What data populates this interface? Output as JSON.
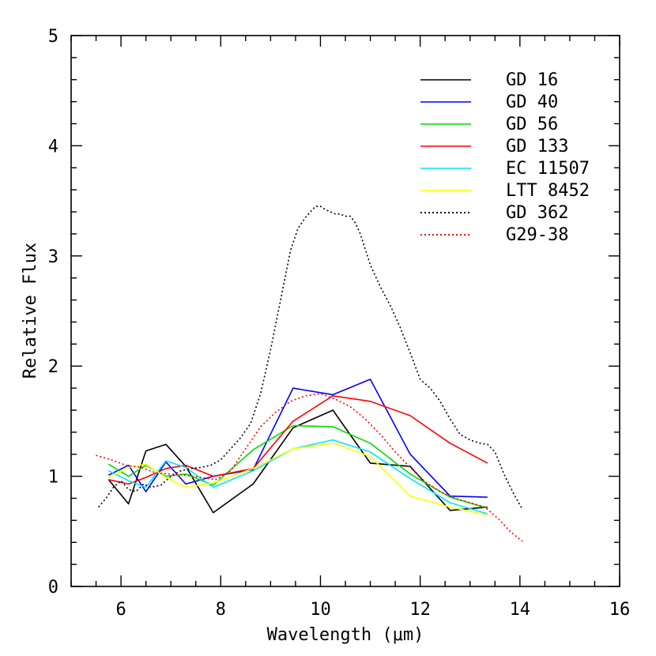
{
  "chart_data": {
    "type": "line",
    "title": "",
    "xlabel": "Wavelength (μm)",
    "ylabel": "Relative Flux",
    "xlim": [
      5,
      16
    ],
    "ylim": [
      0,
      5
    ],
    "xticks_major": [
      6,
      8,
      10,
      12,
      14,
      16
    ],
    "yticks_major": [
      0,
      1,
      2,
      3,
      4,
      5
    ],
    "grid": false,
    "legend_position": "top-right",
    "series": [
      {
        "name": "GD 16",
        "color": "#000000",
        "style": "solid",
        "x": [
          5.75,
          6.15,
          6.5,
          6.9,
          7.3,
          7.85,
          8.65,
          9.45,
          10.25,
          11.0,
          11.8,
          12.6,
          13.35
        ],
        "y": [
          0.97,
          0.75,
          1.23,
          1.29,
          1.09,
          0.67,
          0.93,
          1.44,
          1.6,
          1.12,
          1.09,
          0.69,
          0.72
        ]
      },
      {
        "name": "GD 40",
        "color": "#0000ff",
        "style": "solid",
        "x": [
          5.75,
          6.15,
          6.5,
          6.9,
          7.3,
          7.85,
          8.65,
          9.45,
          10.25,
          11.0,
          11.8,
          12.6,
          13.35
        ],
        "y": [
          1.01,
          1.1,
          0.86,
          1.13,
          0.93,
          1.0,
          1.06,
          1.8,
          1.74,
          1.88,
          1.2,
          0.82,
          0.81
        ]
      },
      {
        "name": "GD 56",
        "color": "#00dd00",
        "style": "solid",
        "x": [
          5.75,
          6.15,
          6.5,
          6.9,
          7.3,
          7.85,
          8.65,
          9.45,
          10.25,
          11.0,
          11.8,
          12.6,
          13.35
        ],
        "y": [
          1.11,
          1.0,
          1.1,
          1.0,
          1.02,
          0.92,
          1.24,
          1.46,
          1.45,
          1.3,
          1.02,
          0.81,
          0.71
        ]
      },
      {
        "name": "GD 133",
        "color": "#ff0000",
        "style": "solid",
        "x": [
          5.75,
          6.15,
          6.5,
          6.9,
          7.3,
          7.85,
          8.65,
          9.45,
          10.25,
          11.0,
          11.8,
          12.6,
          13.35
        ],
        "y": [
          0.97,
          0.93,
          0.99,
          1.07,
          1.1,
          1.0,
          1.07,
          1.5,
          1.73,
          1.68,
          1.55,
          1.3,
          1.12
        ]
      },
      {
        "name": "EC 11507",
        "color": "#00e5ff",
        "style": "solid",
        "x": [
          5.75,
          6.15,
          6.5,
          6.9,
          7.3,
          7.85,
          8.65,
          9.45,
          10.25,
          11.0,
          11.8,
          12.6,
          13.35
        ],
        "y": [
          1.05,
          0.96,
          0.9,
          1.14,
          1.08,
          0.9,
          1.05,
          1.25,
          1.33,
          1.22,
          0.98,
          0.76,
          0.66
        ]
      },
      {
        "name": "LTT 8452",
        "color": "#ffff00",
        "style": "solid",
        "x": [
          5.75,
          6.15,
          6.5,
          6.9,
          7.3,
          7.85,
          8.65,
          9.45,
          10.25,
          11.0,
          11.8,
          12.6,
          13.35
        ],
        "y": [
          0.99,
          1.08,
          1.11,
          0.99,
          0.9,
          0.94,
          1.07,
          1.25,
          1.3,
          1.18,
          0.82,
          0.72,
          0.65
        ]
      },
      {
        "name": "GD 362",
        "color": "#000000",
        "style": "dotted",
        "x": [
          5.55,
          5.7,
          5.85,
          6.0,
          6.15,
          6.3,
          6.45,
          6.6,
          6.8,
          7.0,
          7.2,
          7.4,
          7.6,
          7.8,
          8.0,
          8.2,
          8.4,
          8.6,
          8.8,
          9.0,
          9.2,
          9.4,
          9.55,
          9.7,
          9.8,
          9.9,
          10.0,
          10.1,
          10.2,
          10.3,
          10.4,
          10.5,
          10.6,
          10.7,
          10.8,
          11.0,
          11.2,
          11.4,
          11.6,
          11.8,
          12.0,
          12.2,
          12.4,
          12.6,
          12.8,
          13.0,
          13.2,
          13.35,
          13.5,
          13.7,
          13.9,
          14.05
        ],
        "y": [
          0.72,
          0.8,
          0.9,
          0.96,
          0.88,
          0.86,
          0.93,
          0.9,
          0.92,
          1.0,
          1.05,
          1.07,
          1.08,
          1.1,
          1.15,
          1.25,
          1.35,
          1.48,
          1.75,
          2.15,
          2.6,
          3.05,
          3.25,
          3.35,
          3.4,
          3.45,
          3.45,
          3.42,
          3.4,
          3.38,
          3.38,
          3.36,
          3.36,
          3.3,
          3.2,
          2.92,
          2.72,
          2.55,
          2.35,
          2.12,
          1.88,
          1.8,
          1.68,
          1.52,
          1.38,
          1.33,
          1.3,
          1.29,
          1.22,
          1.0,
          0.82,
          0.7
        ]
      },
      {
        "name": "G29-38",
        "color": "#ff0000",
        "style": "dotted",
        "x": [
          5.5,
          5.8,
          6.1,
          6.4,
          6.7,
          7.0,
          7.3,
          7.6,
          7.9,
          8.2,
          8.5,
          8.8,
          9.1,
          9.4,
          9.7,
          10.0,
          10.3,
          10.6,
          10.9,
          11.2,
          11.5,
          11.8,
          12.1,
          12.4,
          12.7,
          13.0,
          13.3,
          13.6,
          13.8,
          14.05
        ],
        "y": [
          1.19,
          1.15,
          1.1,
          1.08,
          1.03,
          1.02,
          1.01,
          0.99,
          0.97,
          1.05,
          1.25,
          1.45,
          1.58,
          1.68,
          1.73,
          1.75,
          1.7,
          1.63,
          1.52,
          1.38,
          1.22,
          1.08,
          0.95,
          0.86,
          0.8,
          0.76,
          0.72,
          0.6,
          0.5,
          0.41
        ]
      }
    ]
  }
}
